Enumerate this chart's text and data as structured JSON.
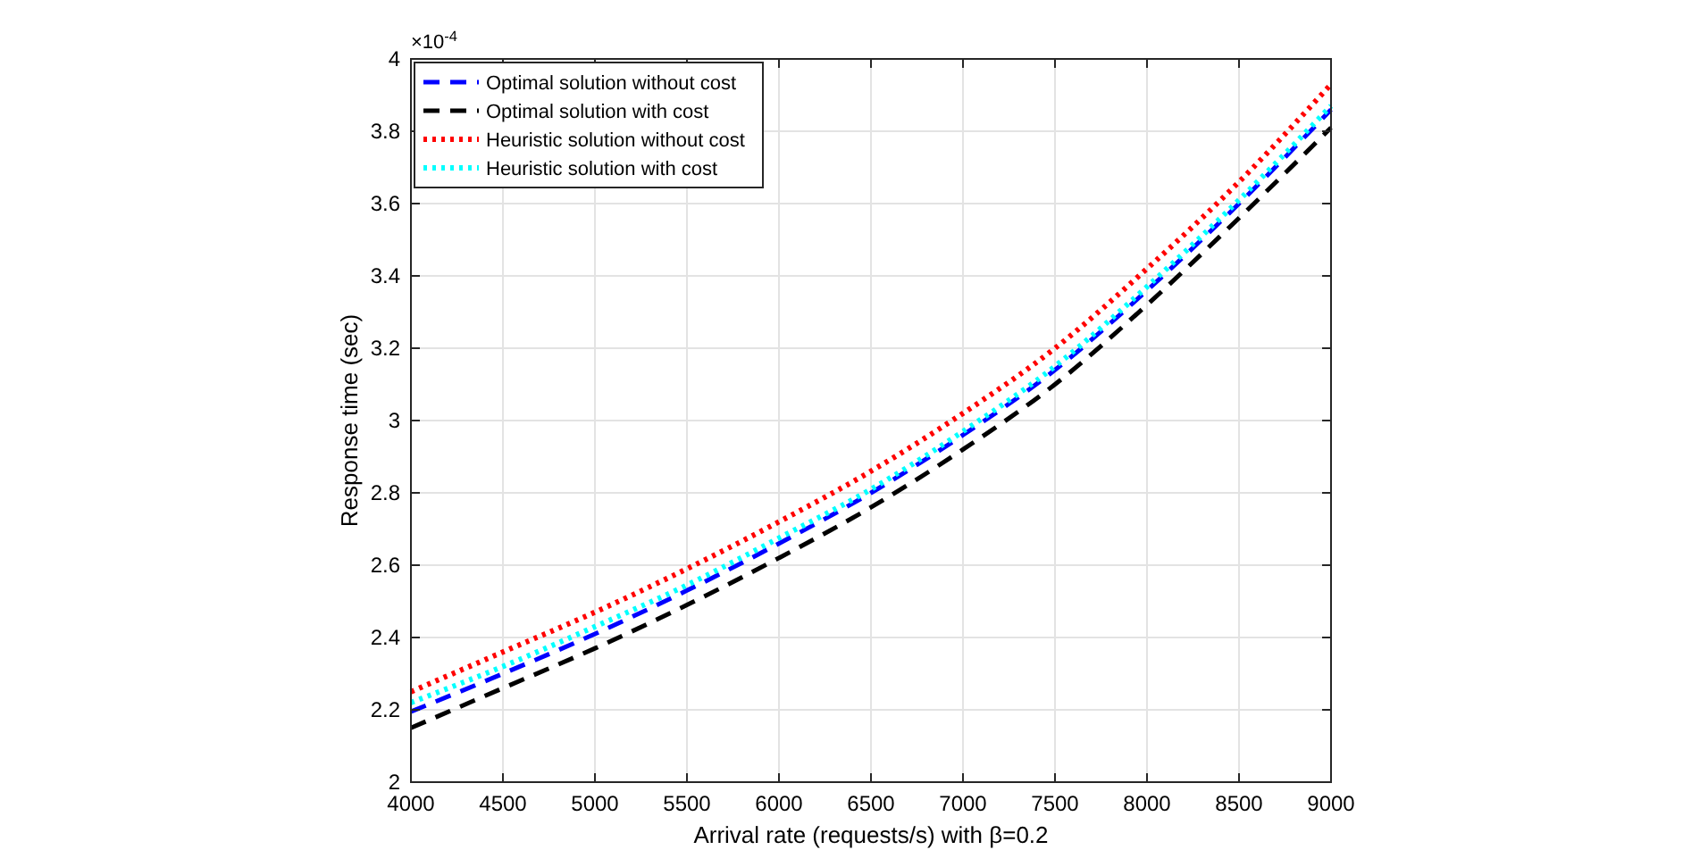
{
  "chart_data": {
    "type": "line",
    "xlabel": "Arrival rate (requests/s) with β=0.2",
    "ylabel": "Response time (sec)",
    "x": [
      4000,
      4500,
      5000,
      5500,
      6000,
      6500,
      7000,
      7500,
      8000,
      8500,
      9000
    ],
    "series": [
      {
        "name": "Optimal solution without cost",
        "color": "#0000ff",
        "line_style": "dashed",
        "values": [
          2.195,
          2.3,
          2.41,
          2.53,
          2.66,
          2.8,
          2.96,
          3.14,
          3.36,
          3.6,
          3.86
        ]
      },
      {
        "name": "Optimal solution with cost",
        "color": "#000000",
        "line_style": "dashed",
        "values": [
          2.15,
          2.26,
          2.37,
          2.49,
          2.62,
          2.76,
          2.92,
          3.1,
          3.32,
          3.56,
          3.81
        ]
      },
      {
        "name": "Heuristic solution without cost",
        "color": "#ff0000",
        "line_style": "dotted",
        "values": [
          2.25,
          2.36,
          2.47,
          2.59,
          2.72,
          2.86,
          3.02,
          3.2,
          3.42,
          3.66,
          3.93
        ]
      },
      {
        "name": "Heuristic solution with cost",
        "color": "#00ffff",
        "line_style": "dotted",
        "values": [
          2.22,
          2.32,
          2.43,
          2.545,
          2.675,
          2.81,
          2.97,
          3.15,
          3.37,
          3.61,
          3.87
        ]
      }
    ],
    "xlim": [
      4000,
      9000
    ],
    "xticks": [
      4000,
      4500,
      5000,
      5500,
      6000,
      6500,
      7000,
      7500,
      8000,
      8500,
      9000
    ],
    "ylim": [
      2,
      4
    ],
    "yticks": [
      2,
      2.2,
      2.4,
      2.6,
      2.8,
      3,
      3.2,
      3.4,
      3.6,
      3.8,
      4
    ],
    "annotations": [
      "×10$^{-4}$"
    ],
    "grid": true,
    "legend": "top left",
    "marker": "none"
  }
}
